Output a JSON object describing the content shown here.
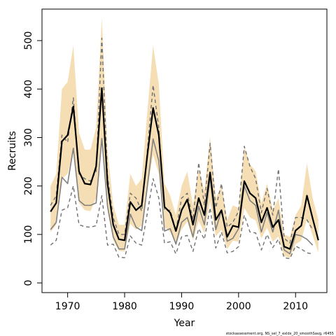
{
  "chart_data": {
    "type": "line",
    "title": "",
    "xlabel": "Year",
    "ylabel": "Recruits",
    "xlim": [
      1965.5,
      2015.5
    ],
    "ylim": [
      -20,
      565
    ],
    "x_ticks": [
      1970,
      1980,
      1990,
      2000,
      2010
    ],
    "y_ticks": [
      0,
      100,
      200,
      300,
      400,
      500
    ],
    "grid": false,
    "legend": "none",
    "footnote": "stockassessment.org, NS_sel_7_exldx_20_smoothSavg, r6455",
    "colors": {
      "band": "#f5deb3",
      "estimate": "#000000",
      "aux_line": "#808080",
      "aux_ci": "#707070"
    },
    "years": [
      1967,
      1968,
      1969,
      1970,
      1971,
      1972,
      1973,
      1974,
      1975,
      1976,
      1977,
      1978,
      1979,
      1980,
      1981,
      1982,
      1983,
      1984,
      1985,
      1986,
      1987,
      1988,
      1989,
      1990,
      1991,
      1992,
      1993,
      1994,
      1995,
      1996,
      1997,
      1998,
      1999,
      2000,
      2001,
      2002,
      2003,
      2004,
      2005,
      2006,
      2007,
      2008,
      2009,
      2010,
      2011,
      2012,
      2013,
      2014
    ],
    "series": [
      {
        "values": [
          147,
          165,
          292,
          305,
          364,
          230,
          205,
          203,
          240,
          402,
          205,
          120,
          90,
          88,
          167,
          150,
          160,
          265,
          361,
          305,
          157,
          145,
          107,
          150,
          172,
          120,
          175,
          140,
          228,
          130,
          150,
          95,
          118,
          115,
          210,
          185,
          175,
          125,
          155,
          115,
          130,
          75,
          70,
          108,
          118,
          180,
          133,
          88
        ]
      },
      {
        "values": [
          200,
          225,
          400,
          415,
          490,
          310,
          275,
          275,
          320,
          547,
          275,
          160,
          120,
          120,
          225,
          200,
          215,
          355,
          490,
          410,
          205,
          180,
          140,
          200,
          230,
          160,
          235,
          190,
          302,
          175,
          200,
          130,
          160,
          155,
          280,
          245,
          230,
          165,
          205,
          150,
          175,
          100,
          95,
          140,
          160,
          247,
          175,
          130
        ]
      },
      {
        "values": [
          105,
          120,
          215,
          225,
          270,
          165,
          150,
          148,
          175,
          295,
          150,
          88,
          66,
          65,
          122,
          110,
          118,
          195,
          265,
          225,
          115,
          105,
          79,
          110,
          127,
          88,
          128,
          103,
          168,
          96,
          110,
          70,
          87,
          85,
          155,
          135,
          129,
          92,
          114,
          85,
          96,
          55,
          52,
          80,
          87,
          133,
          98,
          62
        ]
      },
      {
        "values": [
          110,
          125,
          218,
          205,
          278,
          170,
          160,
          160,
          165,
          298,
          158,
          95,
          70,
          70,
          142,
          115,
          108,
          200,
          297,
          252,
          107,
          112,
          80,
          125,
          135,
          95,
          158,
          120,
          218,
          110,
          150,
          86,
          92,
          112,
          200,
          170,
          160,
          105,
          145,
          105,
          150,
          68,
          60,
          100,
          97,
          90,
          78,
          null
        ]
      },
      {
        "values": [
          160,
          180,
          305,
          290,
          382,
          225,
          215,
          210,
          230,
          505,
          220,
          135,
          100,
          100,
          185,
          175,
          148,
          275,
          408,
          320,
          150,
          150,
          108,
          175,
          185,
          130,
          248,
          160,
          288,
          155,
          205,
          115,
          125,
          148,
          282,
          240,
          215,
          145,
          195,
          140,
          235,
          92,
          82,
          135,
          135,
          130,
          110,
          null
        ]
      },
      {
        "values": [
          78,
          88,
          150,
          155,
          200,
          120,
          116,
          115,
          118,
          180,
          78,
          80,
          53,
          52,
          97,
          82,
          78,
          145,
          215,
          175,
          82,
          85,
          60,
          95,
          98,
          65,
          112,
          90,
          155,
          72,
          105,
          62,
          65,
          75,
          140,
          105,
          103,
          68,
          100,
          73,
          90,
          52,
          50,
          76,
          70,
          62,
          60,
          null
        ]
      }
    ]
  }
}
